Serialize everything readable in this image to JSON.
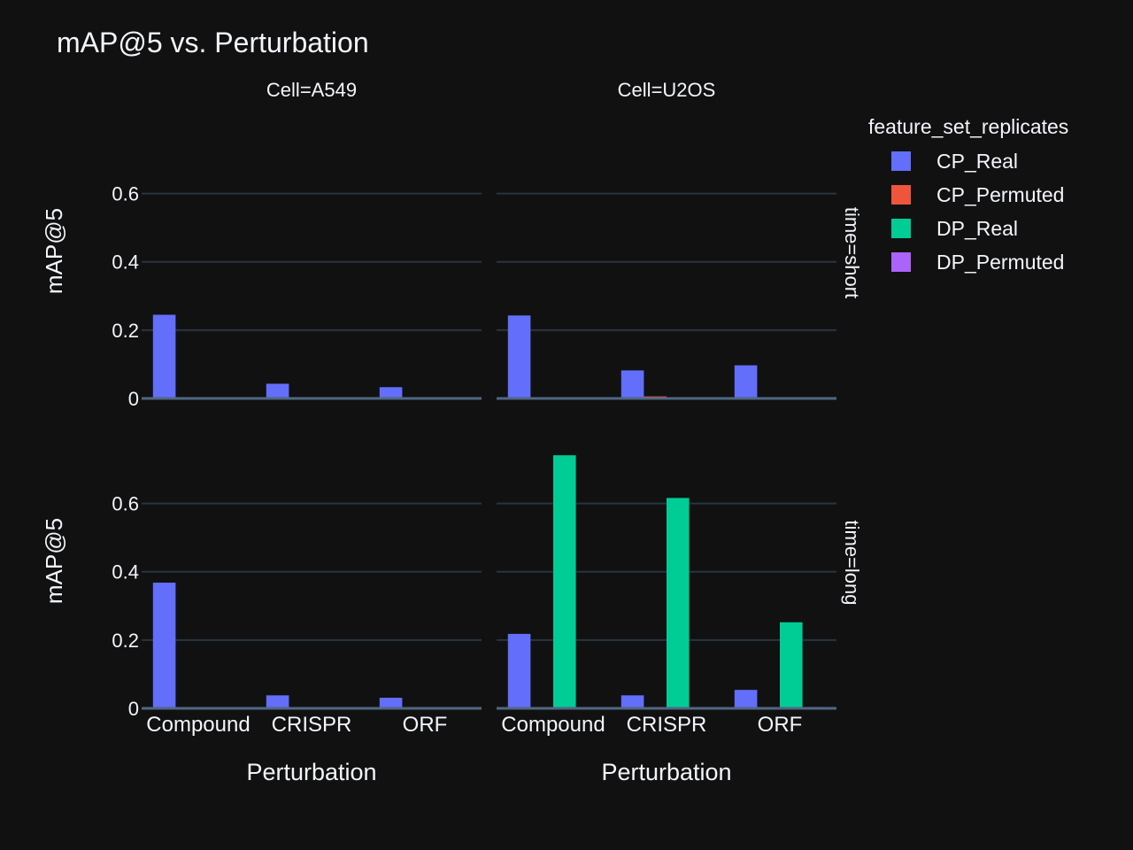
{
  "chart_data": {
    "type": "bar",
    "title": "mAP@5 vs. Perturbation",
    "ylabel": "mAP@5",
    "xlabel": "Perturbation",
    "categories": [
      "Compound",
      "CRISPR",
      "ORF"
    ],
    "ylim": [
      0,
      0.77
    ],
    "yticks": [
      0,
      0.2,
      0.4,
      0.6
    ],
    "yticklabels": [
      "0",
      "0.2",
      "0.4",
      "0.6"
    ],
    "grid": true,
    "legend": {
      "title": "feature_set_replicates",
      "position": "top-right",
      "items": [
        {
          "name": "CP_Real",
          "color": "#636efa"
        },
        {
          "name": "CP_Permuted",
          "color": "#ef553b"
        },
        {
          "name": "DP_Real",
          "color": "#00cc96"
        },
        {
          "name": "DP_Permuted",
          "color": "#ab63fa"
        }
      ]
    },
    "column_facets": [
      "Cell=A549",
      "Cell=U2OS"
    ],
    "row_facets": [
      "time=short",
      "time=long"
    ],
    "panels": [
      {
        "cell": "A549",
        "time": "short",
        "series": [
          {
            "name": "CP_Real",
            "values": [
              0.245,
              0.043,
              0.033
            ]
          },
          {
            "name": "CP_Permuted",
            "values": [
              0.002,
              0.002,
              0.002
            ]
          },
          {
            "name": "DP_Real",
            "values": [
              0.001,
              0.001,
              0.001
            ]
          },
          {
            "name": "DP_Permuted",
            "values": [
              0.001,
              0.001,
              0.001
            ]
          }
        ]
      },
      {
        "cell": "U2OS",
        "time": "short",
        "series": [
          {
            "name": "CP_Real",
            "values": [
              0.243,
              0.082,
              0.097
            ]
          },
          {
            "name": "CP_Permuted",
            "values": [
              0.002,
              0.006,
              0.002
            ]
          },
          {
            "name": "DP_Real",
            "values": [
              0.001,
              0.001,
              0.001
            ]
          },
          {
            "name": "DP_Permuted",
            "values": [
              0.001,
              0.001,
              0.001
            ]
          }
        ]
      },
      {
        "cell": "A549",
        "time": "long",
        "series": [
          {
            "name": "CP_Real",
            "values": [
              0.368,
              0.038,
              0.031
            ]
          },
          {
            "name": "CP_Permuted",
            "values": [
              0.001,
              0.001,
              0.001
            ]
          },
          {
            "name": "DP_Real",
            "values": [
              0.001,
              0.001,
              0.001
            ]
          },
          {
            "name": "DP_Permuted",
            "values": [
              0.001,
              0.001,
              0.001
            ]
          }
        ]
      },
      {
        "cell": "U2OS",
        "time": "long",
        "series": [
          {
            "name": "CP_Real",
            "values": [
              0.218,
              0.038,
              0.054
            ]
          },
          {
            "name": "CP_Permuted",
            "values": [
              0.002,
              0.002,
              0.003
            ]
          },
          {
            "name": "DP_Real",
            "values": [
              0.741,
              0.616,
              0.252
            ]
          },
          {
            "name": "DP_Permuted",
            "values": [
              0.002,
              0.002,
              0.004
            ]
          }
        ]
      }
    ]
  }
}
